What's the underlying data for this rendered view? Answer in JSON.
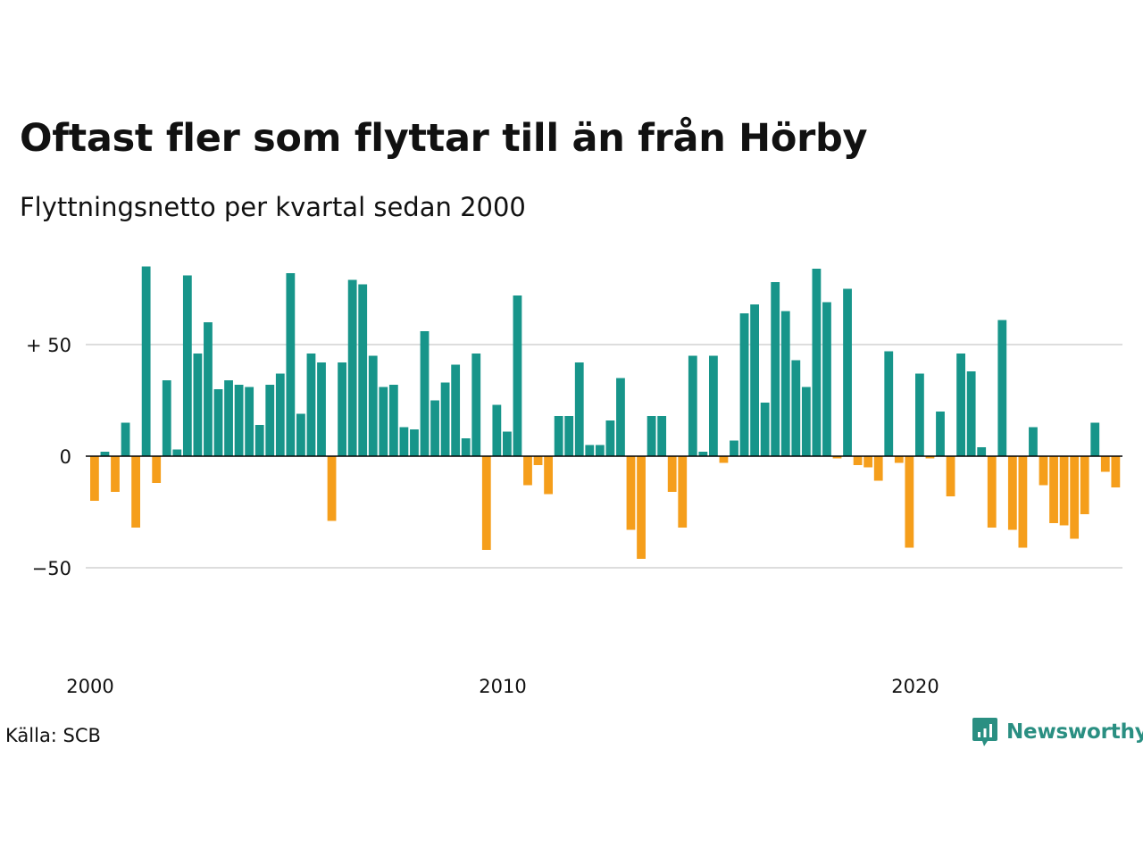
{
  "title": "Oftast fler som flyttar till än från Hörby",
  "subtitle": "Flyttningsnetto per kvartal sedan 2000",
  "source": "Källa: SCB",
  "logo_text": "Newsworthy",
  "colors": {
    "positive": "#17958a",
    "negative": "#f59e1b",
    "grid": "#dddddd",
    "zero_line": "#000000",
    "logo": "#2a8f82"
  },
  "icons": [
    "newsworthy-logo-icon"
  ],
  "chart_data": {
    "type": "bar",
    "title": "",
    "xlabel": "",
    "ylabel": "",
    "ylim": [
      -90,
      90
    ],
    "grid": true,
    "x_start": "2000 Q1",
    "x_ticks": [
      "2000",
      "2010",
      "2020"
    ],
    "y_ticks": [
      {
        "value": 50,
        "label": "+ 50"
      },
      {
        "value": 0,
        "label": "0"
      },
      {
        "value": -50,
        "label": "−50"
      }
    ],
    "values": [
      -20,
      2,
      -16,
      15,
      -32,
      85,
      -12,
      34,
      3,
      81,
      46,
      60,
      30,
      34,
      32,
      31,
      14,
      32,
      37,
      82,
      19,
      46,
      42,
      -29,
      42,
      79,
      77,
      45,
      31,
      32,
      13,
      12,
      56,
      25,
      33,
      41,
      8,
      46,
      -42,
      23,
      11,
      72,
      -13,
      -4,
      -17,
      18,
      18,
      42,
      5,
      5,
      16,
      35,
      -33,
      -46,
      18,
      18,
      -16,
      -32,
      45,
      2,
      45,
      -3,
      7,
      64,
      68,
      24,
      78,
      65,
      43,
      31,
      84,
      69,
      -1,
      75,
      -4,
      -5,
      -11,
      47,
      -3,
      -41,
      37,
      -1,
      20,
      -18,
      46,
      38,
      4,
      -32,
      61,
      -33,
      -41,
      13,
      -13,
      -30,
      -31,
      -37,
      -26,
      15,
      -7,
      -14
    ]
  }
}
